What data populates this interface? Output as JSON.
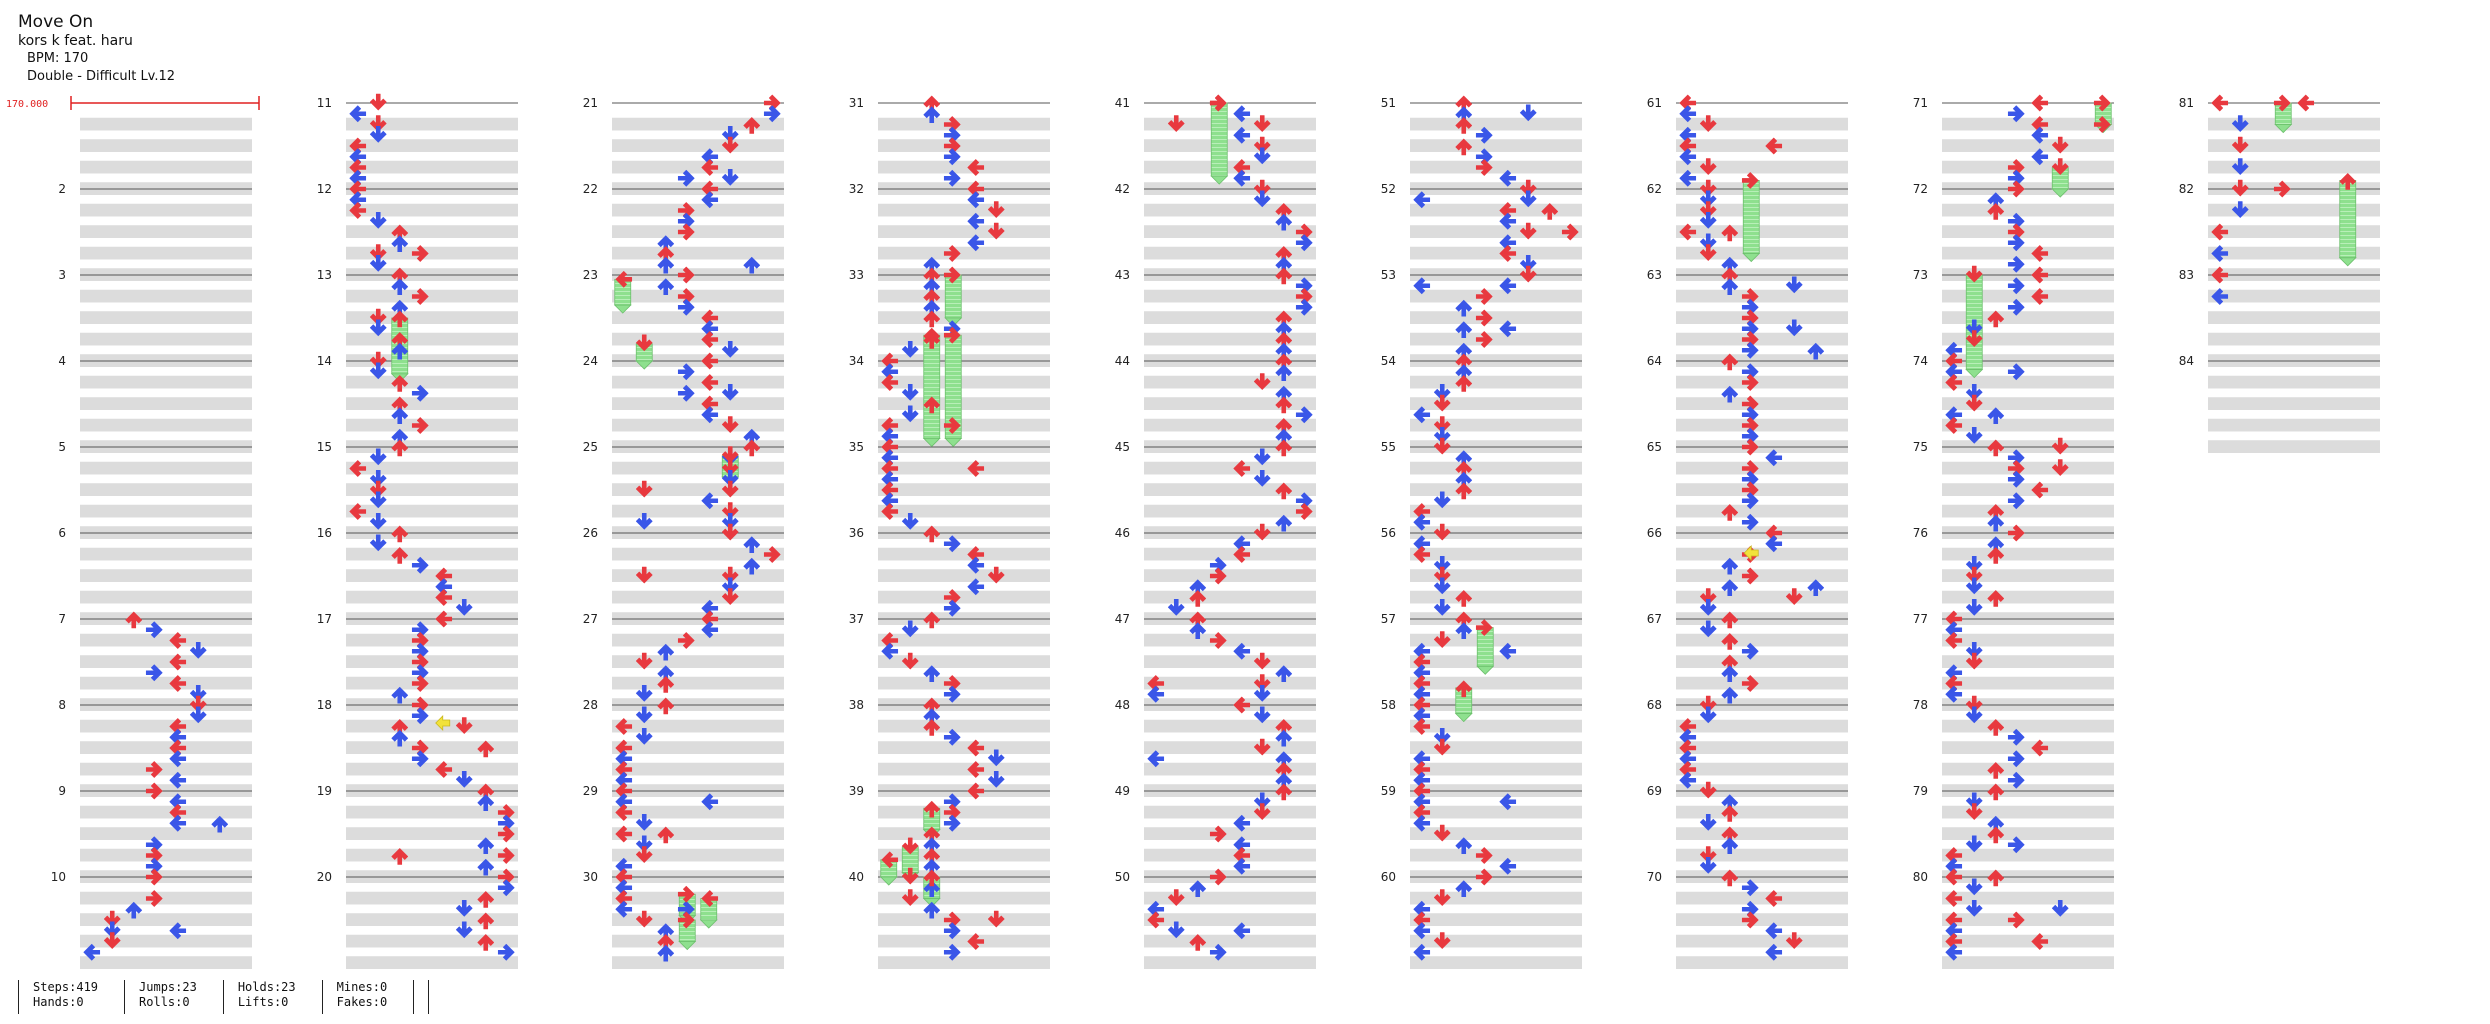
{
  "header": {
    "title": "Move On",
    "artist": "kors k feat. haru",
    "bpm_label": "BPM: 170",
    "difficulty_label": "Double - Difficult  Lv.12"
  },
  "bpm_marker": {
    "label": "170.000",
    "color": "#e02020"
  },
  "colors": {
    "red_arrow": "#e8393f",
    "blue_arrow": "#3a56e8",
    "hold": "#8ee08e",
    "mine": "#f2e23a",
    "stripe": "#dcdcdc",
    "line": "#555555",
    "measure_number": "#222222"
  },
  "measures": {
    "start": 2,
    "end": 84,
    "column_breaks": [
      1,
      11,
      21,
      31,
      41,
      51,
      61,
      71,
      81
    ]
  },
  "measure_numbers": [
    "2",
    "3",
    "4",
    "5",
    "6",
    "7",
    "8",
    "9",
    "10",
    "11",
    "12",
    "13",
    "14",
    "15",
    "16",
    "17",
    "18",
    "19",
    "20",
    "21",
    "22",
    "23",
    "24",
    "25",
    "26",
    "27",
    "28",
    "29",
    "30",
    "31",
    "32",
    "33",
    "34",
    "35",
    "36",
    "37",
    "38",
    "39",
    "40",
    "41",
    "42",
    "43",
    "44",
    "45",
    "46",
    "47",
    "48",
    "49",
    "50",
    "51",
    "52",
    "53",
    "54",
    "55",
    "56",
    "57",
    "58",
    "59",
    "60",
    "61",
    "62",
    "63",
    "64",
    "65",
    "66",
    "67",
    "68",
    "69",
    "70",
    "71",
    "72",
    "73",
    "74",
    "75",
    "76",
    "77",
    "78",
    "79",
    "80",
    "81",
    "82",
    "83",
    "84"
  ],
  "notes_icon": "arrow-note-icon",
  "stats": [
    {
      "items": [
        "Steps:419",
        "Hands:0"
      ]
    },
    {
      "items": [
        "Jumps:23",
        "Rolls:0"
      ]
    },
    {
      "items": [
        "Holds:23",
        "Lifts:0"
      ]
    },
    {
      "items": [
        "Mines:0",
        "Fakes:0"
      ]
    }
  ]
}
